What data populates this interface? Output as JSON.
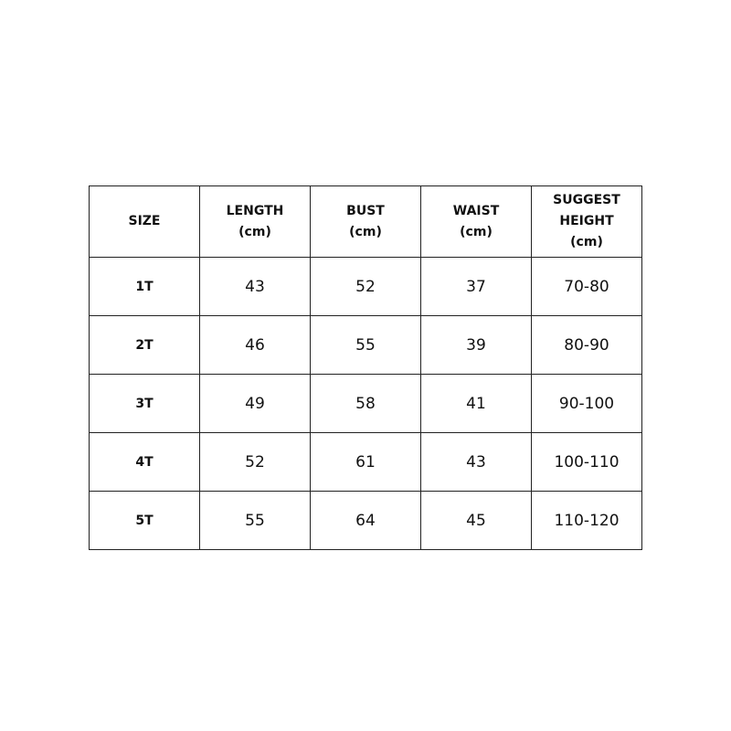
{
  "table": {
    "headers": [
      [
        "SIZE"
      ],
      [
        "LENGTH",
        "(cm)"
      ],
      [
        "BUST",
        "(cm)"
      ],
      [
        "WAIST",
        "(cm)"
      ],
      [
        "SUGGEST",
        "HEIGHT",
        "(cm)"
      ]
    ],
    "rows": [
      [
        "1T",
        "43",
        "52",
        "37",
        "70-80"
      ],
      [
        "2T",
        "46",
        "55",
        "39",
        "80-90"
      ],
      [
        "3T",
        "49",
        "58",
        "41",
        "90-100"
      ],
      [
        "4T",
        "52",
        "61",
        "43",
        "100-110"
      ],
      [
        "5T",
        "55",
        "64",
        "45",
        "110-120"
      ]
    ]
  }
}
